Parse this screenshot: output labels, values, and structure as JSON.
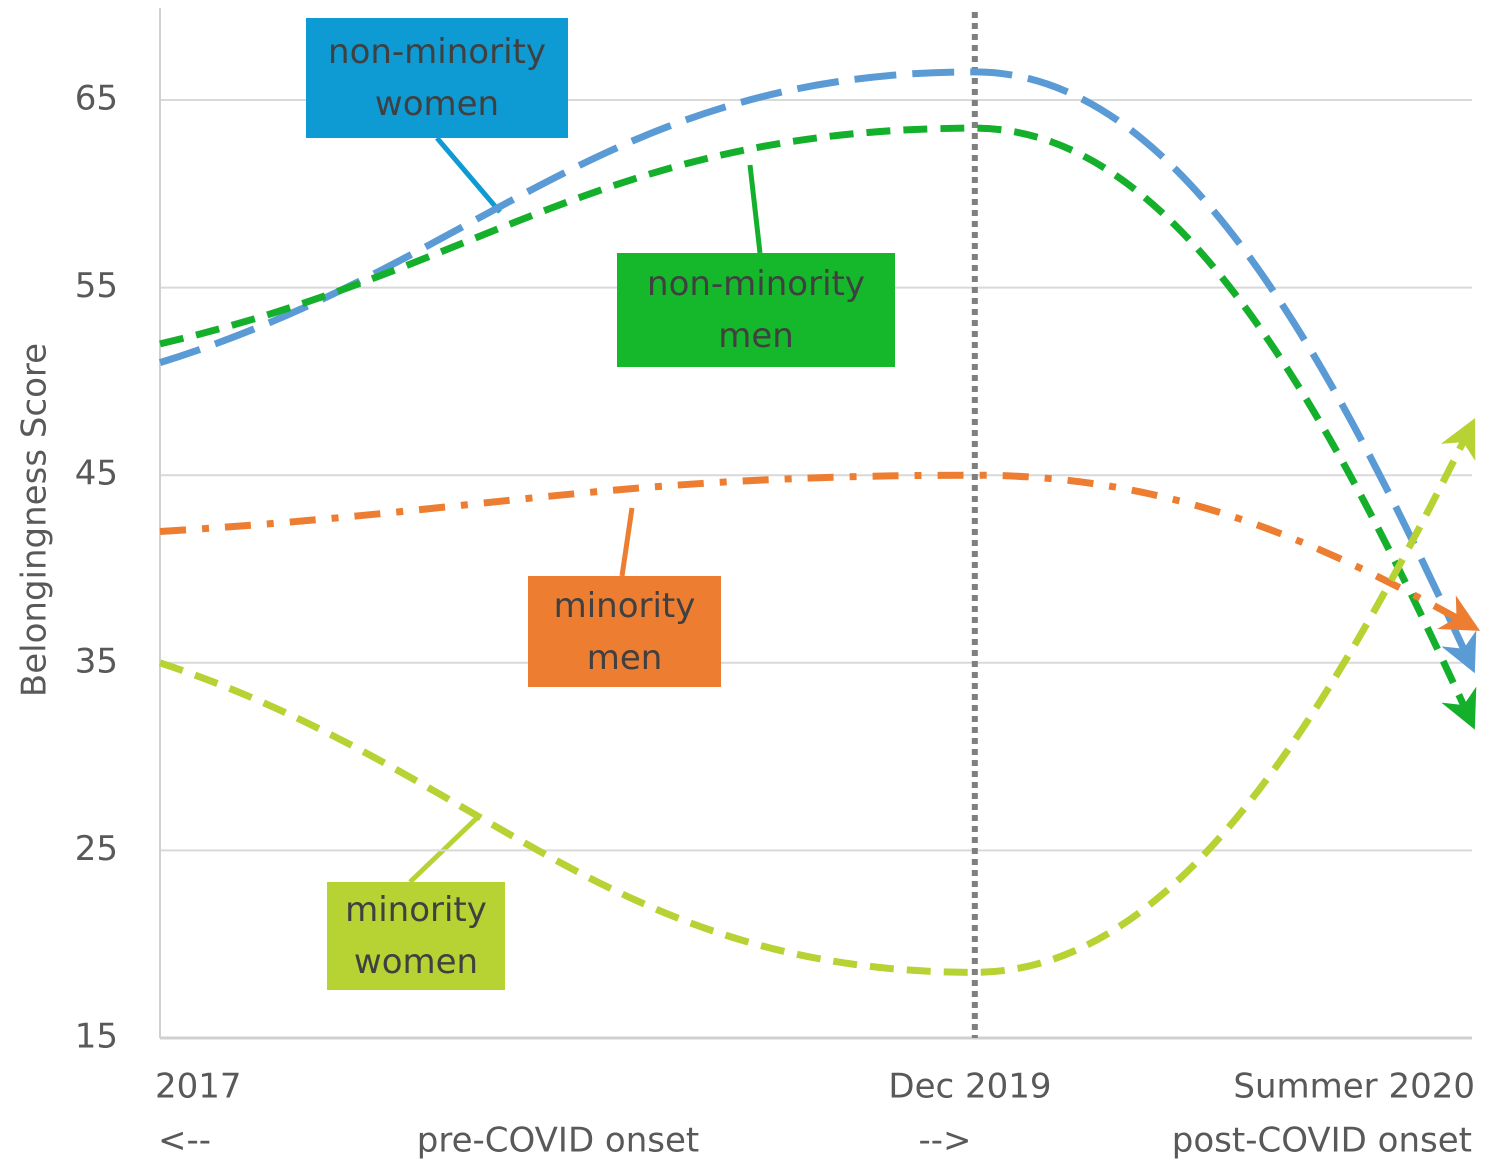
{
  "chart_data": {
    "type": "line",
    "ylabel": "Belongingness Score",
    "categories": [
      "2017",
      "Dec 2019",
      "Summer 2020"
    ],
    "annotations": [
      "<--",
      "pre-COVID onset",
      "-->",
      "post-COVID onset"
    ],
    "ylim": [
      15,
      70
    ],
    "yticks": [
      15,
      25,
      35,
      45,
      55,
      65
    ],
    "grid": true,
    "series": [
      {
        "name": "non-minority women",
        "color": "#5b9bd5",
        "values": [
          51,
          66.5,
          35
        ]
      },
      {
        "name": "non-minority men",
        "color": "#15b02b",
        "values": [
          52,
          63.5,
          32
        ]
      },
      {
        "name": "minority men",
        "color": "#ed7d31",
        "values": [
          42,
          45,
          37
        ]
      },
      {
        "name": "minority women",
        "color": "#b6d233",
        "values": [
          35,
          18.5,
          47.5
        ]
      }
    ]
  }
}
